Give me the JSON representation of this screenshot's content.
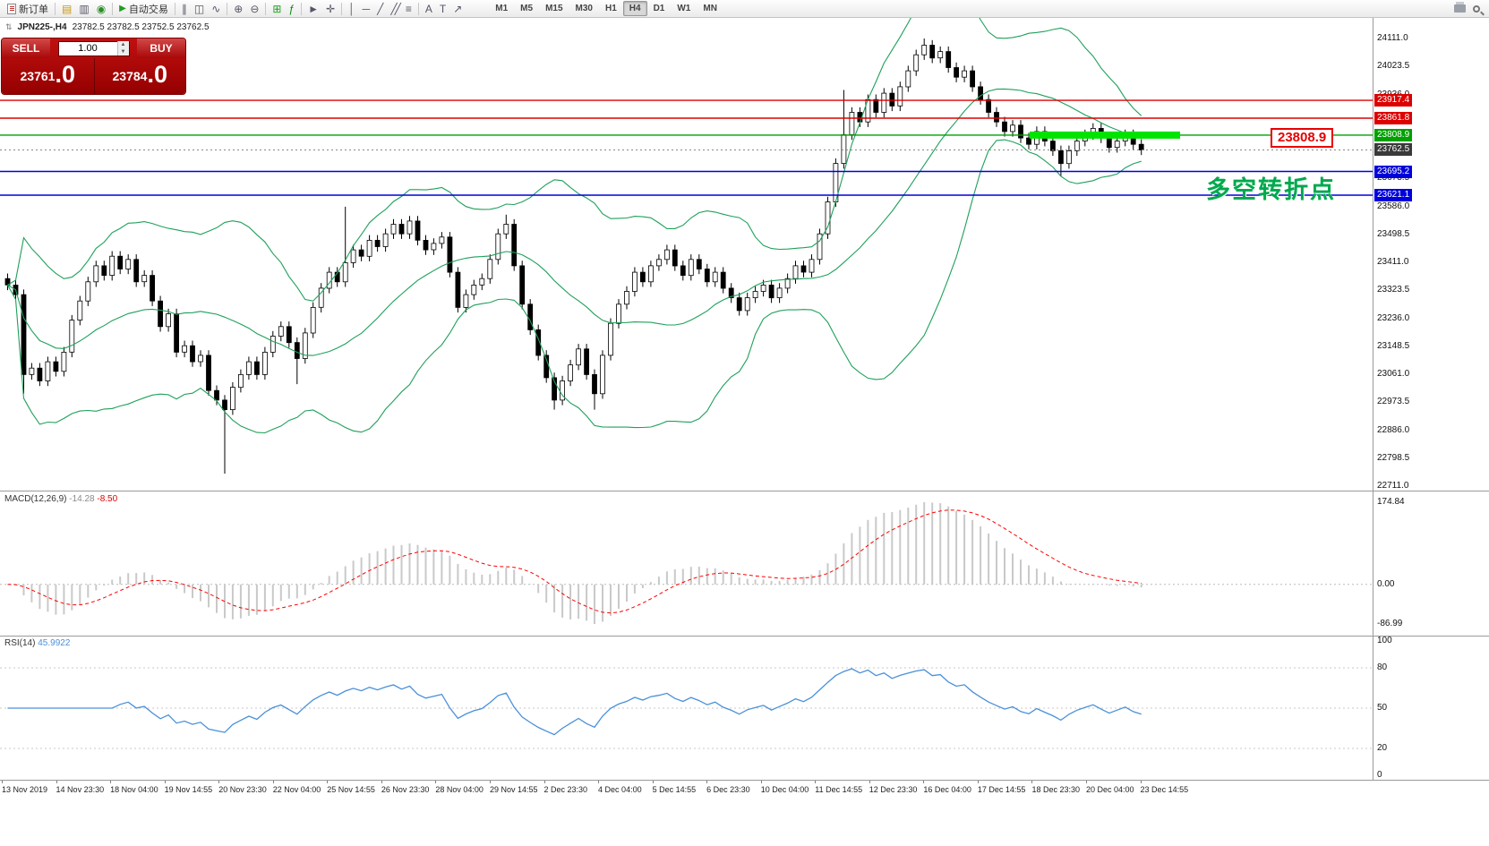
{
  "toolbar": {
    "new_order_label": "新订单",
    "auto_trading_label": "自动交易",
    "timeframes": [
      "M1",
      "M5",
      "M15",
      "M30",
      "H1",
      "H4",
      "D1",
      "W1",
      "MN"
    ],
    "active_timeframe": "H4"
  },
  "chart_window": {
    "title": "JPN225-,H4",
    "ohlc": "23782.5 23782.5 23752.5 23762.5"
  },
  "trade_panel": {
    "sell_label": "SELL",
    "buy_label": "BUY",
    "volume": "1.00",
    "sell_price_int": "23761",
    "sell_price_frac": ".0",
    "buy_price_int": "23784",
    "buy_price_frac": ".0"
  },
  "annotations": {
    "turning_point": "多空转折点",
    "price_callout": "23808.9"
  },
  "main_axis": {
    "labels": [
      24111.0,
      24023.5,
      23936.0,
      23848.5,
      23761.0,
      23673.5,
      23586.0,
      23498.5,
      23411.0,
      23323.5,
      23236.0,
      23148.5,
      23061.0,
      22973.5,
      22886.0,
      22798.5,
      22711.0
    ]
  },
  "hlines": [
    {
      "price": 23917.4,
      "label": "23917.4",
      "color": "#dd0000"
    },
    {
      "price": 23861.8,
      "label": "23861.8",
      "color": "#dd0000"
    },
    {
      "price": 23808.9,
      "label": "23808.9",
      "color": "#00a000"
    },
    {
      "price": 23695.2,
      "label": "23695.2",
      "color": "#0000dd"
    },
    {
      "price": 23621.1,
      "label": "23621.1",
      "color": "#0000dd"
    }
  ],
  "current_price": {
    "price": 23762.5,
    "label": "23762.5",
    "badge_bg": "#3a3a3a"
  },
  "macd_panel": {
    "title": "MACD(12,26,9)",
    "value_main": "-14.28",
    "value_signal": "-8.50",
    "axis_labels": [
      "174.84",
      "0.00",
      "-86.99"
    ]
  },
  "rsi_panel": {
    "title": "RSI(14)",
    "value": "45.9922",
    "axis_labels": [
      100,
      80,
      50,
      20,
      0
    ],
    "levels": [
      80,
      50,
      20
    ]
  },
  "time_axis": [
    "13 Nov 2019",
    "14 Nov 23:30",
    "18 Nov 04:00",
    "19 Nov 14:55",
    "20 Nov 23:30",
    "22 Nov 04:00",
    "25 Nov 14:55",
    "26 Nov 23:30",
    "28 Nov 04:00",
    "29 Nov 14:55",
    "2 Dec 23:30",
    "4 Dec 04:00",
    "5 Dec 14:55",
    "6 Dec 23:30",
    "10 Dec 04:00",
    "11 Dec 14:55",
    "12 Dec 23:30",
    "16 Dec 04:00",
    "17 Dec 14:55",
    "18 Dec 23:30",
    "20 Dec 04:00",
    "23 Dec 14:55"
  ],
  "chart_data": {
    "type": "candlestick",
    "symbol": "JPN225-",
    "timeframe": "H4",
    "last_bar": {
      "open": 23782.5,
      "high": 23782.5,
      "low": 23752.5,
      "close": 23762.5
    },
    "y_range": [
      22711.0,
      24111.0
    ],
    "open_first": 23360,
    "closes": [
      23340,
      23310,
      23060,
      23080,
      23040,
      23100,
      23070,
      23130,
      23230,
      23290,
      23350,
      23400,
      23370,
      23430,
      23390,
      23420,
      23350,
      23370,
      23290,
      23210,
      23250,
      23130,
      23150,
      23100,
      23120,
      23010,
      22980,
      22950,
      23020,
      23060,
      23100,
      23060,
      23130,
      23180,
      23210,
      23160,
      23110,
      23190,
      23270,
      23330,
      23380,
      23350,
      23410,
      23450,
      23430,
      23480,
      23460,
      23500,
      23530,
      23500,
      23540,
      23480,
      23450,
      23470,
      23490,
      23380,
      23270,
      23310,
      23340,
      23360,
      23420,
      23500,
      23530,
      23400,
      23280,
      23200,
      23120,
      23050,
      22980,
      23040,
      23090,
      23140,
      23060,
      23000,
      23120,
      23220,
      23280,
      23320,
      23380,
      23350,
      23400,
      23420,
      23450,
      23400,
      23370,
      23420,
      23390,
      23350,
      23380,
      23330,
      23300,
      23260,
      23300,
      23320,
      23340,
      23300,
      23330,
      23360,
      23400,
      23380,
      23420,
      23500,
      23600,
      23720,
      23810,
      23880,
      23850,
      23920,
      23880,
      23940,
      23900,
      23960,
      24010,
      24060,
      24090,
      24050,
      24070,
      24020,
      23990,
      24010,
      23960,
      23920,
      23880,
      23850,
      23820,
      23840,
      23800,
      23780,
      23820,
      23790,
      23760,
      23720,
      23760,
      23790,
      23810,
      23830,
      23800,
      23770,
      23790,
      23810,
      23780,
      23762.5
    ],
    "wick_highs": {
      "42": 23585,
      "62": 23560,
      "104": 23950,
      "114": 24111
    },
    "wick_lows": {
      "2": 23000,
      "27": 22750,
      "36": 23030,
      "68": 22950,
      "73": 22950,
      "131": 23680
    },
    "indicators": {
      "bollinger": {
        "period": 20,
        "deviation": 2
      },
      "macd": {
        "fast": 12,
        "slow": 26,
        "signal": 9
      },
      "rsi": {
        "period": 14
      }
    },
    "colors": {
      "bollinger": "#1fa05a",
      "candle_up_fill": "#ffffff",
      "candle_down_fill": "#000000",
      "candle_outline": "#000000",
      "macd_histogram": "#c9c9c9",
      "macd_signal": "#ff0000",
      "rsi_line": "#4a90d9",
      "highlight_segment": "#00e400",
      "callout": "#e80000",
      "annotation_green": "#00a84f"
    }
  }
}
